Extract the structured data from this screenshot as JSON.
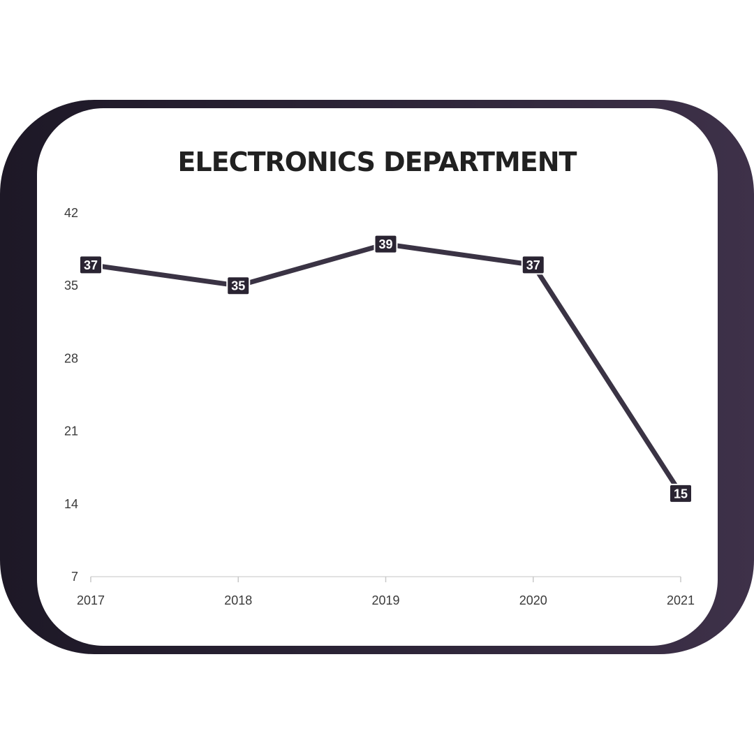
{
  "chart_data": {
    "type": "line",
    "title": "ELECTRONICS DEPARTMENT",
    "xlabel": "",
    "ylabel": "",
    "categories": [
      "2017",
      "2018",
      "2019",
      "2020",
      "2021"
    ],
    "series": [
      {
        "values": [
          37,
          35,
          39,
          37,
          15
        ],
        "color": "#3a3344"
      }
    ],
    "ylim": [
      7,
      42
    ],
    "yticks": [
      42,
      35,
      28,
      21,
      14,
      7
    ],
    "grid": false,
    "legend": "none",
    "data_labels": true,
    "label_bg_color": "#2a2432",
    "frame_gradient": [
      "#1d1826",
      "#3e3149"
    ]
  }
}
